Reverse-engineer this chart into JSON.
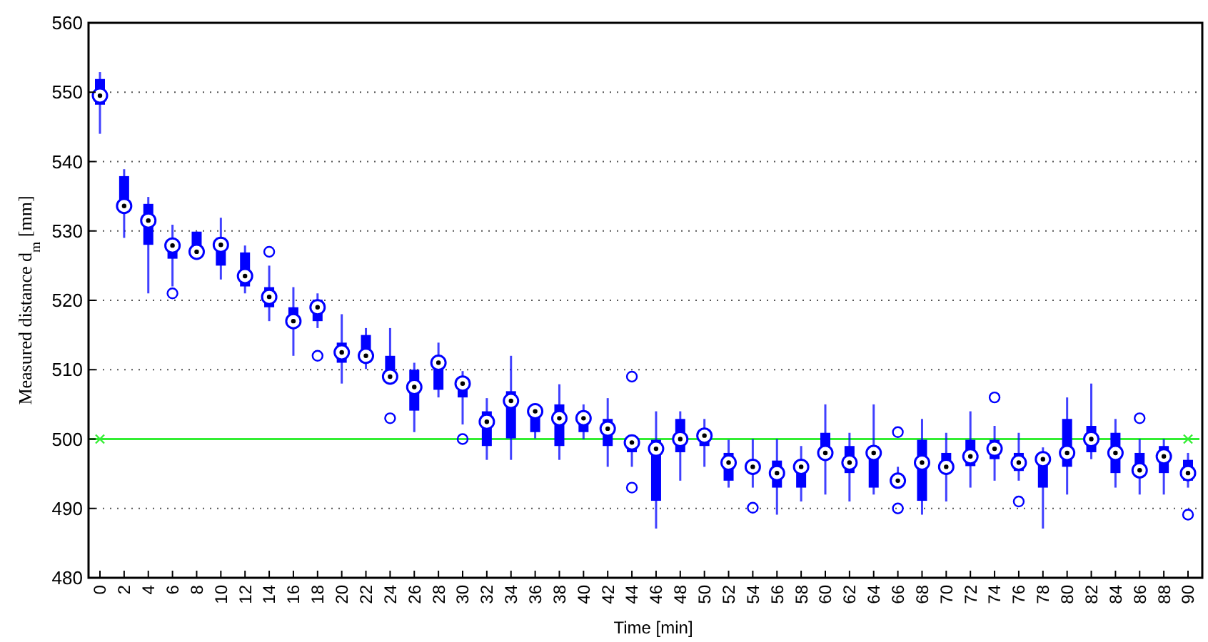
{
  "chart_data": {
    "type": "box",
    "xlabel": "Time [min]",
    "ylabel": "Measured distance d$_{m}$ [mm]",
    "color": "#0000ff",
    "categories": [
      "0",
      "2",
      "4",
      "6",
      "8",
      "10",
      "12",
      "14",
      "16",
      "18",
      "20",
      "22",
      "24",
      "26",
      "28",
      "30",
      "32",
      "34",
      "36",
      "38",
      "40",
      "42",
      "44",
      "46",
      "48",
      "50",
      "52",
      "54",
      "56",
      "58",
      "60",
      "62",
      "64",
      "66",
      "68",
      "70",
      "72",
      "74",
      "76",
      "78",
      "80",
      "82",
      "84",
      "86",
      "88",
      "90"
    ],
    "boxes": [
      {
        "low": 544,
        "q1": 548.2,
        "median": 549.5,
        "q3": 551.9,
        "high": 552.9
      },
      {
        "low": 529,
        "q1": 533,
        "median": 533.6,
        "q3": 537.9,
        "high": 538.9
      },
      {
        "low": 521,
        "q1": 528,
        "median": 531.5,
        "q3": 533.9,
        "high": 534.9
      },
      {
        "low": 522,
        "q1": 526,
        "median": 527.9,
        "q3": 528.6,
        "high": 530.9,
        "outliers": [
          521
        ]
      },
      {
        "low": 526,
        "q1": 526.2,
        "median": 527,
        "q3": 529.9,
        "high": 529.9
      },
      {
        "low": 523,
        "q1": 525,
        "median": 528,
        "q3": 529,
        "high": 531.9
      },
      {
        "low": 521,
        "q1": 522,
        "median": 523.5,
        "q3": 526.9,
        "high": 527.9
      },
      {
        "low": 517,
        "q1": 519,
        "median": 520.5,
        "q3": 521.9,
        "high": 525,
        "outliers": [
          527
        ]
      },
      {
        "low": 512,
        "q1": 516.3,
        "median": 517,
        "q3": 519,
        "high": 521.9
      },
      {
        "low": 516,
        "q1": 517,
        "median": 519,
        "q3": 520.1,
        "high": 521,
        "outliers": [
          512
        ]
      },
      {
        "low": 508,
        "q1": 511,
        "median": 512.5,
        "q3": 513.9,
        "high": 518
      },
      {
        "low": 510.1,
        "q1": 511.2,
        "median": 512,
        "q3": 515,
        "high": 516
      },
      {
        "low": 508,
        "q1": 508.4,
        "median": 509,
        "q3": 512,
        "high": 516,
        "outliers": [
          503
        ]
      },
      {
        "low": 501,
        "q1": 504.1,
        "median": 507.5,
        "q3": 510,
        "high": 511
      },
      {
        "low": 506,
        "q1": 507.1,
        "median": 511,
        "q3": 511.8,
        "high": 513.9
      },
      {
        "low": 502.1,
        "q1": 506,
        "median": 508,
        "q3": 508.8,
        "high": 509.8,
        "outliers": [
          500
        ]
      },
      {
        "low": 497,
        "q1": 499,
        "median": 502.5,
        "q3": 504,
        "high": 505.9
      },
      {
        "low": 497,
        "q1": 500.1,
        "median": 505.5,
        "q3": 506.9,
        "high": 512
      },
      {
        "low": 500.1,
        "q1": 501,
        "median": 504,
        "q3": 504.7,
        "high": 505
      },
      {
        "low": 497,
        "q1": 499,
        "median": 503,
        "q3": 505,
        "high": 507.9
      },
      {
        "low": 500,
        "q1": 501,
        "median": 503,
        "q3": 504,
        "high": 505
      },
      {
        "low": 496,
        "q1": 499,
        "median": 501.5,
        "q3": 502.9,
        "high": 505.9
      },
      {
        "low": 496,
        "q1": 498.1,
        "median": 499.5,
        "q3": 500.3,
        "high": 500.3,
        "outliers": [
          509,
          493
        ]
      },
      {
        "low": 487.1,
        "q1": 491.1,
        "median": 498.6,
        "q3": 499.9,
        "high": 504
      },
      {
        "low": 494,
        "q1": 498.1,
        "median": 500,
        "q3": 502.9,
        "high": 504
      },
      {
        "low": 496,
        "q1": 499,
        "median": 500.5,
        "q3": 501,
        "high": 502.9
      },
      {
        "low": 493,
        "q1": 494,
        "median": 496.6,
        "q3": 498,
        "high": 499.9
      },
      {
        "low": 493,
        "q1": 495.4,
        "median": 496,
        "q3": 496.8,
        "high": 500,
        "outliers": [
          490.1
        ]
      },
      {
        "low": 489.1,
        "q1": 493,
        "median": 495.1,
        "q3": 496.9,
        "high": 500
      },
      {
        "low": 491,
        "q1": 493,
        "median": 496,
        "q3": 496.8,
        "high": 499
      },
      {
        "low": 492,
        "q1": 497.5,
        "median": 498,
        "q3": 500.9,
        "high": 505
      },
      {
        "low": 491,
        "q1": 495.1,
        "median": 496.6,
        "q3": 499,
        "high": 500.9
      },
      {
        "low": 492,
        "q1": 493,
        "median": 498,
        "q3": 499,
        "high": 505
      },
      {
        "low": 493.5,
        "q1": 493.5,
        "median": 494,
        "q3": 494.7,
        "high": 496,
        "outliers": [
          501,
          490
        ]
      },
      {
        "low": 489.1,
        "q1": 491.1,
        "median": 496.6,
        "q3": 499.9,
        "high": 502.9
      },
      {
        "low": 491,
        "q1": 495.4,
        "median": 496,
        "q3": 498,
        "high": 500.9
      },
      {
        "low": 493,
        "q1": 496.1,
        "median": 497.5,
        "q3": 499.9,
        "high": 504
      },
      {
        "low": 494,
        "q1": 497.1,
        "median": 498.6,
        "q3": 499.9,
        "high": 501.9,
        "outliers": [
          506
        ]
      },
      {
        "low": 494,
        "q1": 495.4,
        "median": 496.6,
        "q3": 498,
        "high": 500.9,
        "outliers": [
          491
        ]
      },
      {
        "low": 487.1,
        "q1": 493,
        "median": 497.1,
        "q3": 498,
        "high": 498.8
      },
      {
        "low": 492,
        "q1": 496,
        "median": 498,
        "q3": 502.9,
        "high": 506
      },
      {
        "low": 497.1,
        "q1": 498.1,
        "median": 500,
        "q3": 501.9,
        "high": 508
      },
      {
        "low": 493,
        "q1": 495.1,
        "median": 498,
        "q3": 500.9,
        "high": 502.9
      },
      {
        "low": 492,
        "q1": 495.1,
        "median": 495.5,
        "q3": 498,
        "high": 500,
        "outliers": [
          503
        ]
      },
      {
        "low": 492,
        "q1": 495.1,
        "median": 497.5,
        "q3": 499,
        "high": 500
      },
      {
        "low": 493,
        "q1": 494,
        "median": 495.1,
        "q3": 497,
        "high": 498,
        "outliers": [
          489.1
        ]
      }
    ],
    "ylim": [
      480,
      560
    ],
    "yticks": [
      480,
      490,
      500,
      510,
      520,
      530,
      540,
      550,
      560
    ],
    "grid": "y",
    "ref_lines": [
      {
        "axis": "y",
        "value": 500,
        "color": "#33ee33"
      }
    ]
  }
}
